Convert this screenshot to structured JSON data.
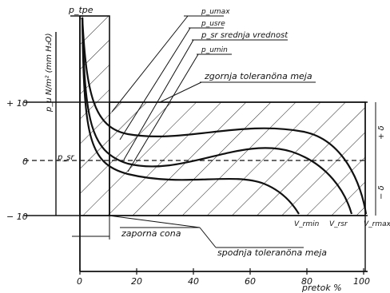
{
  "labels": {
    "p_max_axis": "p_tpe",
    "y_axis_label": "p_u N/m² (mm H₂O)",
    "plus10": "+ 10",
    "zero": "0",
    "minus10": "− 10",
    "p_nominal": "p_sr",
    "curve_max": "p_umax",
    "curve_sre": "p_usre",
    "curve_mid": "p_sr  srednja vrednost",
    "curve_min": "p_umin",
    "upper_tol": "zgornja toleranöna meja",
    "lower_tol": "spodnja toleranöna meja",
    "dead_zone": "zaporna cona",
    "tol_plus": "+ δ",
    "tol_minus": "− δ",
    "v_min": "V_rmin",
    "v_sre": "V_rsr",
    "v_max": "V_rmax",
    "x_axis_label": "pretok %"
  },
  "x_ticks": [
    "0",
    "20",
    "40",
    "60",
    "80",
    "100"
  ],
  "colors": {
    "ink": "#111111",
    "paper": "#ffffff"
  }
}
